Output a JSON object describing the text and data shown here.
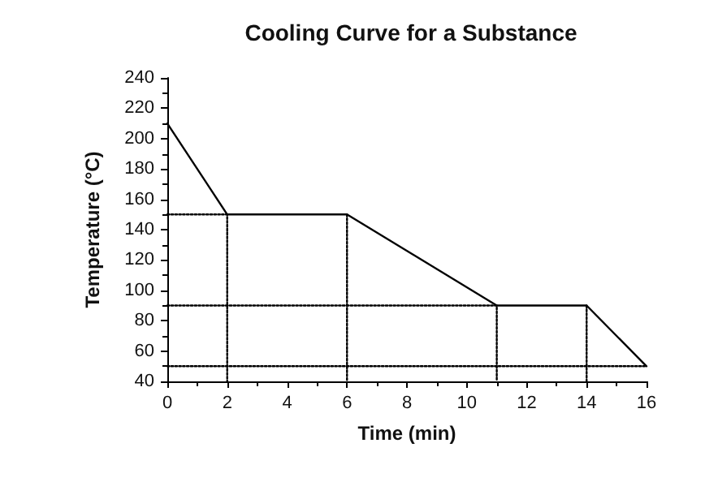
{
  "chart_data": {
    "type": "line",
    "title": "Cooling Curve for a Substance",
    "xlabel": "Time (min)",
    "ylabel": "Temperature (°C)",
    "xlim": [
      0,
      16
    ],
    "xticks": [
      0,
      2,
      4,
      6,
      8,
      10,
      12,
      14,
      16
    ],
    "ylim": [
      40,
      240
    ],
    "yticks": [
      40,
      60,
      80,
      100,
      120,
      140,
      160,
      180,
      200,
      220,
      240
    ],
    "grid": false,
    "marker": "none",
    "series": [
      {
        "color": "#000000",
        "x": [
          0,
          2,
          6,
          11,
          14,
          16
        ],
        "values": [
          210,
          150,
          150,
          90,
          90,
          50
        ],
        "line_style": "solid"
      },
      {
        "color": "#000000",
        "x": [
          0,
          2,
          2
        ],
        "values": [
          150,
          150,
          40
        ],
        "line_style": "dotted"
      },
      {
        "color": "#000000",
        "x": [
          6,
          6
        ],
        "values": [
          150,
          40
        ],
        "line_style": "dotted"
      },
      {
        "color": "#000000",
        "x": [
          0,
          11,
          11
        ],
        "values": [
          90,
          90,
          40
        ],
        "line_style": "dotted"
      },
      {
        "color": "#000000",
        "x": [
          14,
          14
        ],
        "values": [
          90,
          40
        ],
        "line_style": "dotted"
      },
      {
        "color": "#000000",
        "x": [
          0,
          16
        ],
        "values": [
          50,
          50
        ],
        "line_style": "dotted"
      }
    ]
  }
}
